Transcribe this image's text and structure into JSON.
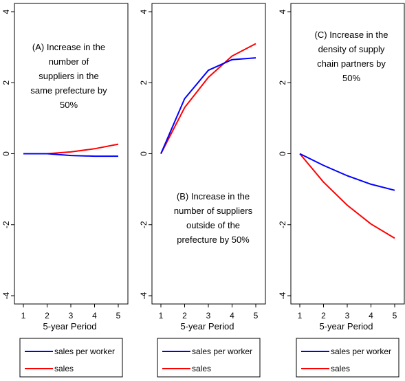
{
  "chart_data": [
    {
      "type": "line",
      "annotation": [
        "(A) Increase in the",
        "number of",
        "suppliers in the",
        "same prefecture by",
        "50%"
      ],
      "xlabel": "5-year Period",
      "x": [
        1,
        2,
        3,
        4,
        5
      ],
      "xticks": [
        "1",
        "2",
        "3",
        "4",
        "5"
      ],
      "ylim": [
        -4,
        4
      ],
      "yticks": [
        "-4",
        "-2",
        "0",
        "2",
        "4"
      ],
      "series": [
        {
          "name": "sales per worker",
          "color": "#0000ff",
          "values": [
            0,
            0,
            -0.05,
            -0.07,
            -0.07
          ]
        },
        {
          "name": "sales",
          "color": "#ff0000",
          "values": [
            0,
            0,
            0.05,
            0.14,
            0.27
          ]
        }
      ],
      "legend": {
        "entries": [
          "sales per worker",
          "sales"
        ],
        "placement": "bottom"
      }
    },
    {
      "type": "line",
      "annotation": [
        "(B) Increase in the",
        "number of suppliers",
        "outside of the",
        "prefecture by 50%"
      ],
      "xlabel": "5-year Period",
      "x": [
        1,
        2,
        3,
        4,
        5
      ],
      "xticks": [
        "1",
        "2",
        "3",
        "4",
        "5"
      ],
      "ylim": [
        -4,
        4
      ],
      "yticks": [
        "-4",
        "-2",
        "0",
        "2",
        "4"
      ],
      "series": [
        {
          "name": "sales per worker",
          "color": "#0000ff",
          "values": [
            0,
            1.55,
            2.35,
            2.65,
            2.7
          ]
        },
        {
          "name": "sales",
          "color": "#ff0000",
          "values": [
            0,
            1.3,
            2.15,
            2.75,
            3.1
          ]
        }
      ],
      "legend": {
        "entries": [
          "sales per worker",
          "sales"
        ],
        "placement": "bottom"
      }
    },
    {
      "type": "line",
      "annotation": [
        "(C) Increase in the",
        "density of supply",
        "chain partners by",
        "50%"
      ],
      "xlabel": "5-year Period",
      "x": [
        1,
        2,
        3,
        4,
        5
      ],
      "xticks": [
        "1",
        "2",
        "3",
        "4",
        "5"
      ],
      "ylim": [
        -4,
        4
      ],
      "yticks": [
        "-4",
        "-2",
        "0",
        "2",
        "4"
      ],
      "series": [
        {
          "name": "sales per worker",
          "color": "#0000ff",
          "values": [
            0,
            -0.33,
            -0.62,
            -0.86,
            -1.03
          ]
        },
        {
          "name": "sales",
          "color": "#ff0000",
          "values": [
            0,
            -0.8,
            -1.45,
            -1.98,
            -2.38
          ]
        }
      ],
      "legend": {
        "entries": [
          "sales per worker",
          "sales"
        ],
        "placement": "bottom"
      }
    }
  ]
}
